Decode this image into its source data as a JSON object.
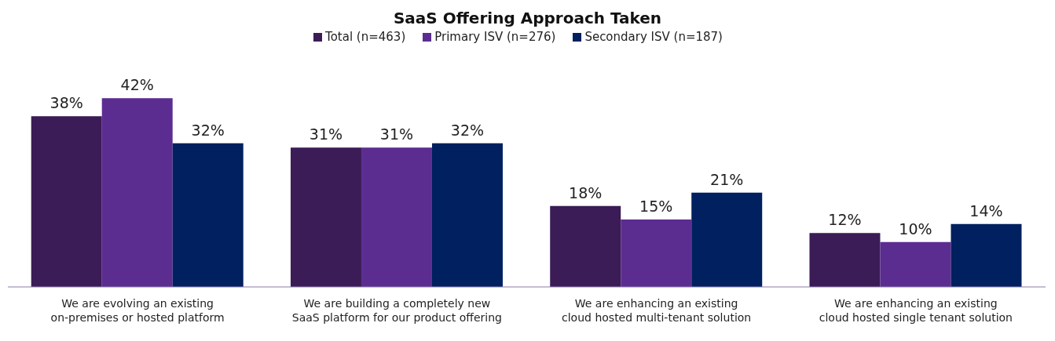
{
  "chart_data": {
    "type": "bar",
    "title": "SaaS Offering Approach Taken",
    "categories": [
      "We are evolving an existing\non-premises or hosted platform",
      "We are building a completely new\nSaaS platform for our product offering",
      "We are enhancing an existing\ncloud hosted multi-tenant solution",
      "We are enhancing an existing\ncloud hosted single tenant solution"
    ],
    "series": [
      {
        "name": "Total (n=463)",
        "color": "#3b1c56",
        "values": [
          38,
          31,
          18,
          12
        ],
        "value_labels": [
          "38%",
          "31%",
          "18%",
          "12%"
        ]
      },
      {
        "name": "Primary ISV (n=276)",
        "color": "#5c2d91",
        "values": [
          42,
          31,
          15,
          10
        ],
        "value_labels": [
          "42%",
          "31%",
          "15%",
          "10%"
        ]
      },
      {
        "name": "Secondary ISV (n=187)",
        "color": "#00205f",
        "values": [
          32,
          32,
          21,
          14
        ],
        "value_labels": [
          "32%",
          "32%",
          "21%",
          "14%"
        ]
      }
    ],
    "legend": "top",
    "grid": false
  }
}
